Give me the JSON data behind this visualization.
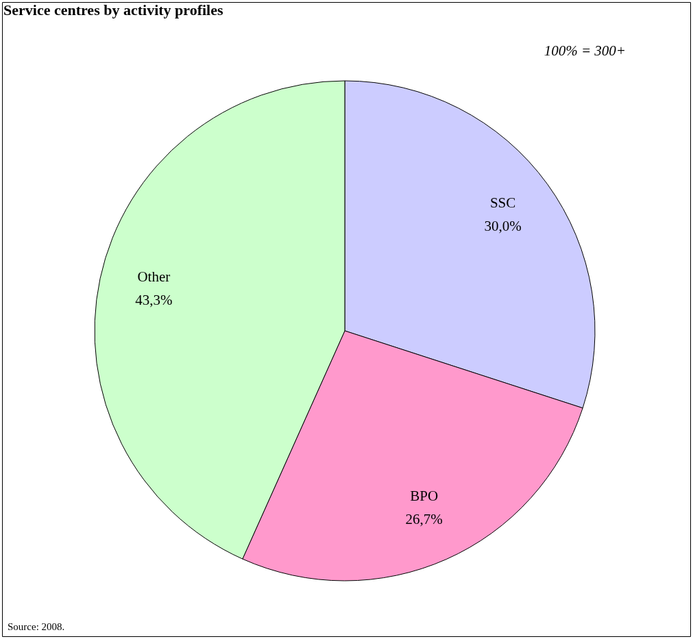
{
  "chart_data": {
    "type": "pie",
    "title": "Service centres by activity profiles",
    "categories": [
      "SSC",
      "BPO",
      "Other"
    ],
    "values": [
      30.0,
      26.7,
      43.3
    ],
    "value_labels": [
      "30,0%",
      "26,7%",
      "43,3%"
    ],
    "colors": [
      "#ccccff",
      "#ff99cc",
      "#ccffcc"
    ],
    "annotations": [
      "100% = 300+",
      "Source: 2008."
    ]
  }
}
